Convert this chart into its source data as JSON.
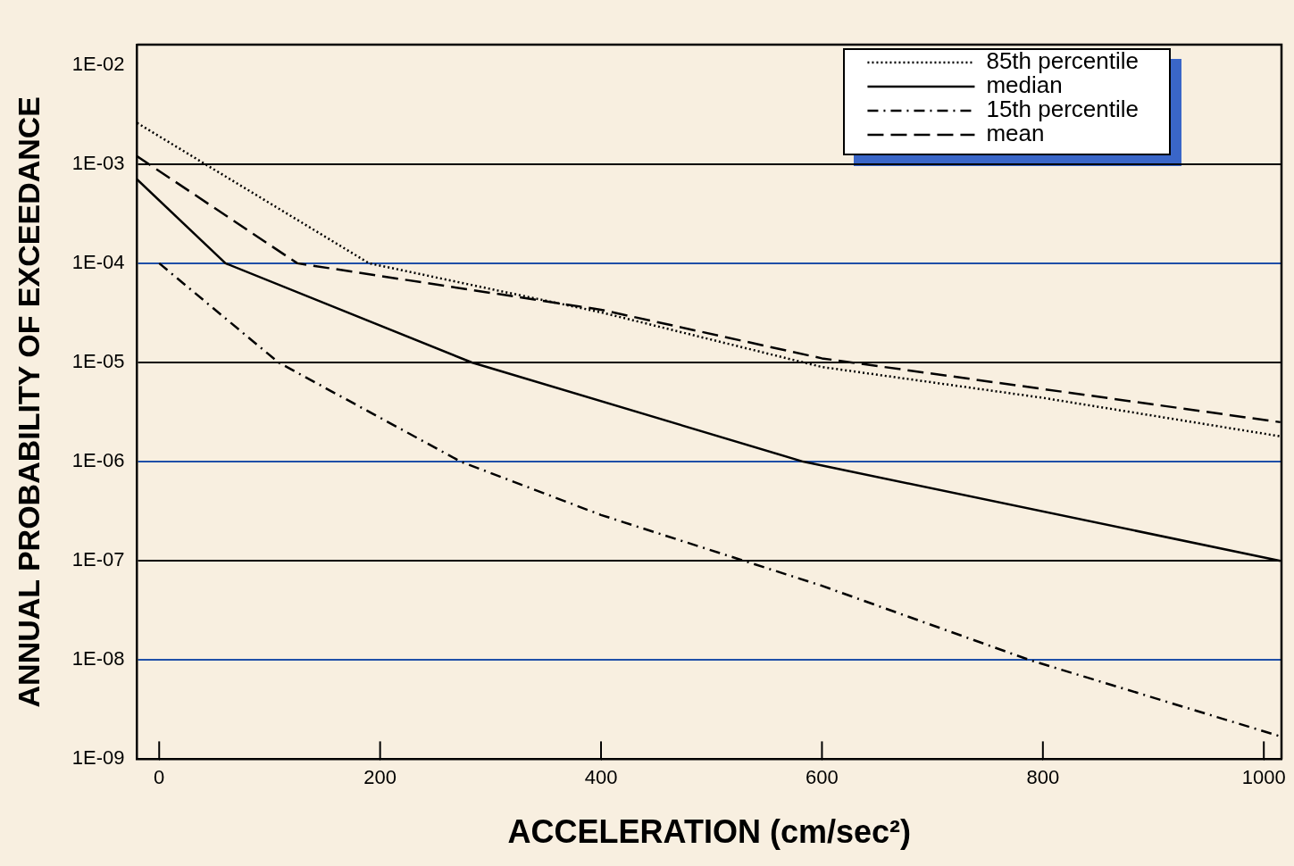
{
  "chart_data": {
    "type": "line",
    "xlabel": "ACCELERATION (cm/sec²)",
    "ylabel": "ANNUAL PROBABILITY OF EXCEEDANCE",
    "log": "y",
    "xlim": [
      -20,
      1016
    ],
    "ylim": [
      1e-09,
      0.016
    ],
    "xticks": [
      0,
      200,
      400,
      600,
      800,
      1000
    ],
    "yticks": [
      {
        "value": 0.01,
        "label": "1E-02"
      },
      {
        "value": 0.001,
        "label": "1E-03"
      },
      {
        "value": 0.0001,
        "label": "1E-04"
      },
      {
        "value": 1e-05,
        "label": "1E-05"
      },
      {
        "value": 1e-06,
        "label": "1E-06"
      },
      {
        "value": 1e-07,
        "label": "1E-07"
      },
      {
        "value": 1e-08,
        "label": "1E-08"
      },
      {
        "value": 1e-09,
        "label": "1E-09"
      }
    ],
    "grid": "y",
    "legend": "top right",
    "marker": "none",
    "series": [
      {
        "name": "85th percentile",
        "color": "#000000",
        "line_style": "dotted",
        "x": [
          -20,
          190,
          400,
          600,
          800,
          1015
        ],
        "values": [
          0.0026,
          0.0001,
          3.2e-05,
          9e-06,
          4.4e-06,
          1.8e-06
        ]
      },
      {
        "name": "median",
        "color": "#000000",
        "line_style": "solid",
        "x": [
          -20,
          60,
          283,
          583,
          1015
        ],
        "values": [
          0.0007,
          0.0001,
          1e-05,
          1e-06,
          1e-07
        ]
      },
      {
        "name": "15th percentile",
        "color": "#000000",
        "line_style": "dashdot",
        "x": [
          0,
          108,
          273,
          400,
          600,
          788,
          1015
        ],
        "values": [
          0.0001,
          1e-05,
          1e-06,
          2.9e-07,
          5.6e-08,
          1e-08,
          1.7e-09
        ]
      },
      {
        "name": "mean",
        "color": "#000000",
        "line_style": "dashed",
        "x": [
          -20,
          125,
          400,
          600,
          800,
          1015
        ],
        "values": [
          0.0012,
          0.0001,
          3.4e-05,
          1.1e-05,
          5.4e-06,
          2.5e-06
        ]
      }
    ]
  }
}
